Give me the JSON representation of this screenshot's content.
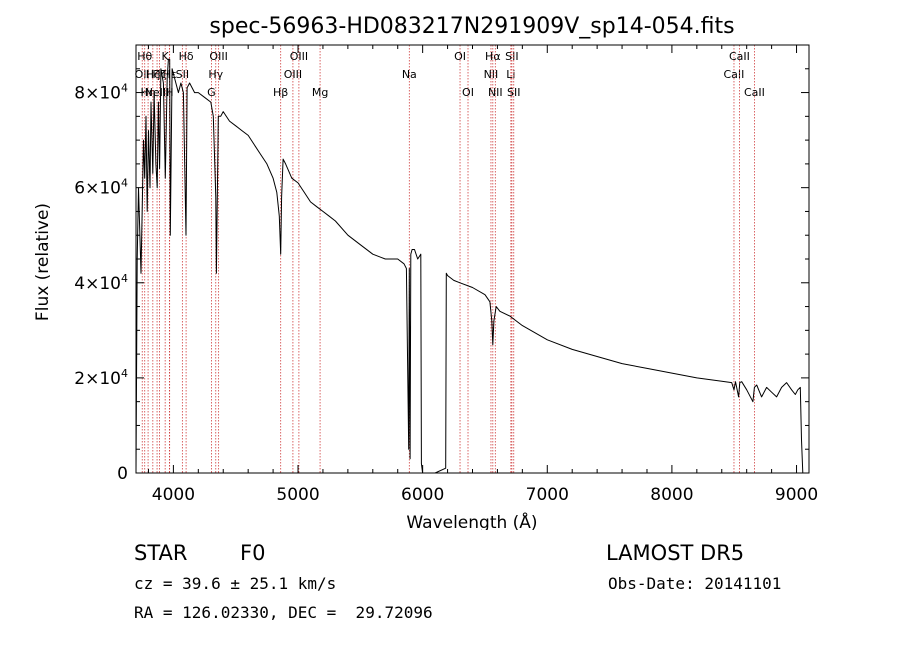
{
  "chart_data": {
    "type": "line",
    "title": "spec-56963-HD083217N291909V_sp14-054.fits",
    "xlabel": "Wavelength (Å)",
    "ylabel": "Flux (relative)",
    "xlim": [
      3700,
      9100
    ],
    "ylim": [
      0,
      90000
    ],
    "xticks": [
      4000,
      5000,
      6000,
      7000,
      8000,
      9000
    ],
    "yticks": [
      {
        "value": 0,
        "mant": "0",
        "exp": ""
      },
      {
        "value": 20000,
        "mant": "2×10",
        "exp": "4"
      },
      {
        "value": 40000,
        "mant": "4×10",
        "exp": "4"
      },
      {
        "value": 60000,
        "mant": "6×10",
        "exp": "4"
      },
      {
        "value": 80000,
        "mant": "8×10",
        "exp": "4"
      }
    ],
    "grid": false,
    "series": [
      {
        "x": [
          3700,
          3710,
          3720,
          3740,
          3760,
          3770,
          3780,
          3790,
          3800,
          3812,
          3820,
          3835,
          3845,
          3860,
          3870,
          3880,
          3889,
          3900,
          3920,
          3935,
          3950,
          3960,
          3970,
          3975,
          3990,
          4010,
          4040,
          4060,
          4080,
          4101,
          4110,
          4130,
          4170,
          4200,
          4250,
          4300,
          4320,
          4340,
          4345,
          4360,
          4380,
          4400,
          4450,
          4500,
          4550,
          4600,
          4650,
          4700,
          4750,
          4800,
          4830,
          4850,
          4861,
          4868,
          4880,
          4900,
          4950,
          5000,
          5050,
          5100,
          5150,
          5200,
          5250,
          5300,
          5400,
          5500,
          5600,
          5700,
          5800,
          5850,
          5870,
          5888,
          5893,
          5899,
          5905,
          5915,
          5935,
          5960,
          5985,
          5990,
          6000,
          6100,
          6185,
          6190,
          6200,
          6250,
          6300,
          6400,
          6500,
          6540,
          6555,
          6563,
          6572,
          6590,
          6620,
          6700,
          6800,
          7000,
          7200,
          7400,
          7600,
          7800,
          8000,
          8200,
          8400,
          8480,
          8498,
          8510,
          8535,
          8545,
          8560,
          8600,
          8650,
          8662,
          8680,
          8720,
          8760,
          8800,
          8840,
          8880,
          8920,
          8960,
          8990,
          9010,
          9030,
          9040,
          9050
        ],
        "y": [
          0,
          45000,
          60000,
          42000,
          70000,
          62000,
          75000,
          55000,
          72000,
          60000,
          78000,
          63000,
          80000,
          65000,
          60000,
          78000,
          64000,
          85000,
          82000,
          62000,
          83000,
          87000,
          87000,
          50000,
          85000,
          83000,
          80000,
          82000,
          80000,
          50000,
          81000,
          82000,
          80000,
          80000,
          79000,
          78000,
          75000,
          58000,
          42000,
          75000,
          75000,
          76000,
          74000,
          73000,
          72000,
          71000,
          69000,
          67000,
          65000,
          62000,
          59000,
          54000,
          46000,
          58000,
          66000,
          65000,
          62000,
          61000,
          59000,
          57000,
          56000,
          55000,
          54000,
          53000,
          50000,
          48000,
          46000,
          45000,
          45000,
          44000,
          43000,
          5000,
          43000,
          3000,
          46000,
          47000,
          47000,
          45000,
          46000,
          2000,
          0,
          0,
          1000,
          42000,
          41500,
          40500,
          40000,
          39000,
          37500,
          36000,
          32000,
          27000,
          32000,
          35000,
          34000,
          33000,
          31000,
          28000,
          26000,
          24500,
          23000,
          22000,
          21000,
          20000,
          19300,
          19000,
          17500,
          19200,
          16000,
          19000,
          19200,
          17500,
          15000,
          18000,
          18500,
          16000,
          18000,
          17000,
          16000,
          18000,
          19000,
          17500,
          16500,
          17500,
          18000,
          7000,
          0
        ]
      }
    ],
    "lines": [
      {
        "x": 3750,
        "label": "OII",
        "row": 2
      },
      {
        "x": 3770,
        "label": "Hθ",
        "row": 1
      },
      {
        "x": 3797,
        "label": "Hη",
        "row": 3
      },
      {
        "x": 3835,
        "label": "Hζ",
        "row": 2
      },
      {
        "x": 3869,
        "label": "NeIII",
        "row": 3
      },
      {
        "x": 3889,
        "label": "Hζ",
        "row": 2
      },
      {
        "x": 3934,
        "label": "K",
        "row": 1
      },
      {
        "x": 3968,
        "label": "H",
        "row": 3
      },
      {
        "x": 3970,
        "label": "Hε",
        "row": 2
      },
      {
        "x": 4072,
        "label": "SII",
        "row": 2
      },
      {
        "x": 4102,
        "label": "Hδ",
        "row": 1
      },
      {
        "x": 4305,
        "label": "G",
        "row": 3
      },
      {
        "x": 4340,
        "label": "Hγ",
        "row": 2
      },
      {
        "x": 4363,
        "label": "OIII",
        "row": 1
      },
      {
        "x": 4861,
        "label": "Hβ",
        "row": 3
      },
      {
        "x": 4959,
        "label": "OIII",
        "row": 2
      },
      {
        "x": 5007,
        "label": "OIII",
        "row": 1
      },
      {
        "x": 5177,
        "label": "Mg",
        "row": 3
      },
      {
        "x": 5893,
        "label": "Na",
        "row": 2
      },
      {
        "x": 6300,
        "label": "OI",
        "row": 1
      },
      {
        "x": 6364,
        "label": "OI",
        "row": 3
      },
      {
        "x": 6548,
        "label": "NII",
        "row": 2
      },
      {
        "x": 6563,
        "label": "Hα",
        "row": 1
      },
      {
        "x": 6583,
        "label": "NII",
        "row": 3
      },
      {
        "x": 6708,
        "label": "Li",
        "row": 2
      },
      {
        "x": 6716,
        "label": "SII",
        "row": 1
      },
      {
        "x": 6731,
        "label": "SII",
        "row": 3
      },
      {
        "x": 8498,
        "label": "CaII",
        "row": 2
      },
      {
        "x": 8542,
        "label": "CaII",
        "row": 1
      },
      {
        "x": 8662,
        "label": "CaII",
        "row": 3
      }
    ]
  },
  "info": {
    "object_class": "STAR",
    "subclass": "F0",
    "survey": "LAMOST DR5",
    "redshift": "cz = 39.6 ± 25.1 km/s",
    "obs_date": "Obs-Date: 20141101",
    "coords": "RA = 126.02330, DEC =  29.72096"
  }
}
